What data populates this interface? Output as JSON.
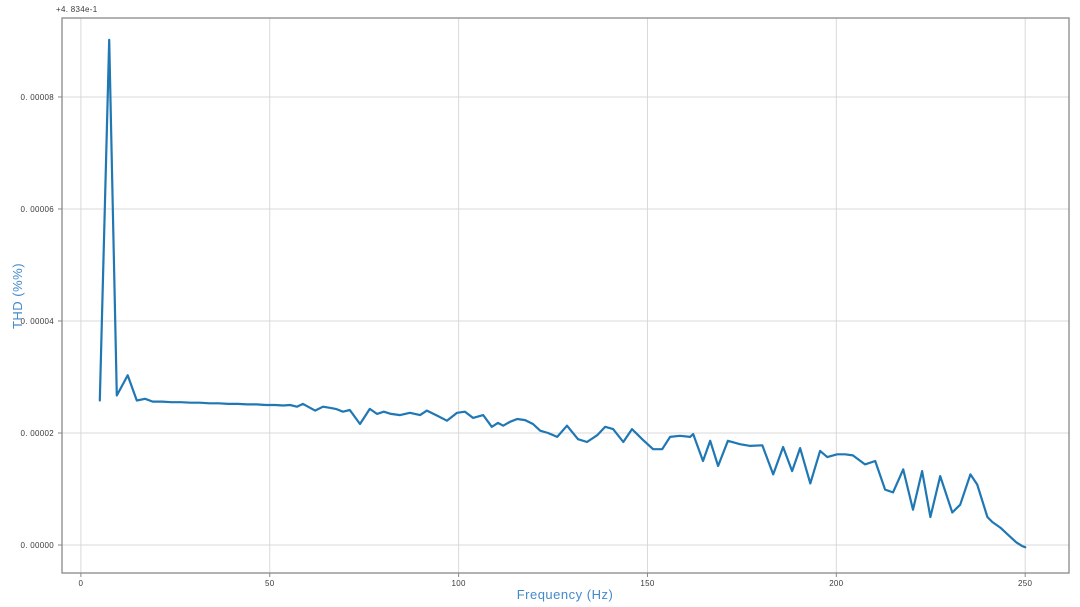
{
  "figure": {
    "offset_text": "+4. 834e-1",
    "xlabel": "Frequency (Hz)",
    "ylabel": "THD (%%)"
  },
  "colors": {
    "background": "#ffffff",
    "line": "#1f77b4",
    "axis_label": "#4489cc",
    "grid": "#d9d9d9",
    "spine": "#898989",
    "tick_text": "#3a3a3a"
  },
  "chart_data": {
    "type": "line",
    "title": "",
    "xlabel": "Frequency (Hz)",
    "ylabel": "THD (%%)",
    "y_offset_text": "+4. 834e-1",
    "legend": "none",
    "grid": true,
    "x_tick_values": [
      0,
      50,
      100,
      150,
      200,
      250
    ],
    "x_tick_labels": [
      "0",
      "50",
      "100",
      "150",
      "200",
      "250"
    ],
    "y_tick_values_e5": [
      0,
      2,
      4,
      6,
      8
    ],
    "y_tick_labels": [
      "0. 00000",
      "0. 00002",
      "0. 00004",
      "0. 00006",
      "0. 00008"
    ],
    "xlim": [
      -5.0,
      261.6
    ],
    "ylim_e5": [
      -0.5,
      9.41
    ],
    "y_unit_note": "y values in units of 1e-5 relative to axis offset +4.834e-1 (%)",
    "points": [
      [
        5,
        2.58
      ],
      [
        7.5,
        9.02
      ],
      [
        9.5,
        2.67
      ],
      [
        12.4,
        3.03
      ],
      [
        14.8,
        2.58
      ],
      [
        17,
        2.61
      ],
      [
        19,
        2.56
      ],
      [
        21.5,
        2.56
      ],
      [
        24,
        2.55
      ],
      [
        26.5,
        2.55
      ],
      [
        29,
        2.54
      ],
      [
        31.5,
        2.54
      ],
      [
        34,
        2.53
      ],
      [
        36.5,
        2.53
      ],
      [
        39,
        2.52
      ],
      [
        41.5,
        2.52
      ],
      [
        44,
        2.51
      ],
      [
        46.5,
        2.51
      ],
      [
        49,
        2.5
      ],
      [
        51.5,
        2.5
      ],
      [
        53.5,
        2.49
      ],
      [
        55.4,
        2.5
      ],
      [
        57.2,
        2.47
      ],
      [
        58.8,
        2.52
      ],
      [
        62,
        2.4
      ],
      [
        64.1,
        2.47
      ],
      [
        65.9,
        2.45
      ],
      [
        67.5,
        2.43
      ],
      [
        69.4,
        2.38
      ],
      [
        71.2,
        2.41
      ],
      [
        73.9,
        2.16
      ],
      [
        76.5,
        2.43
      ],
      [
        78.4,
        2.34
      ],
      [
        80.2,
        2.38
      ],
      [
        82.1,
        2.34
      ],
      [
        84.5,
        2.32
      ],
      [
        87.1,
        2.36
      ],
      [
        89.8,
        2.32
      ],
      [
        91.6,
        2.4
      ],
      [
        94.3,
        2.31
      ],
      [
        96.9,
        2.22
      ],
      [
        99.6,
        2.36
      ],
      [
        101.7,
        2.38
      ],
      [
        103.8,
        2.27
      ],
      [
        106.5,
        2.32
      ],
      [
        108.8,
        2.11
      ],
      [
        110.4,
        2.18
      ],
      [
        111.8,
        2.13
      ],
      [
        113.6,
        2.2
      ],
      [
        115.5,
        2.25
      ],
      [
        117.6,
        2.23
      ],
      [
        119.7,
        2.16
      ],
      [
        121.6,
        2.04
      ],
      [
        123.7,
        2.0
      ],
      [
        126.1,
        1.93
      ],
      [
        128.7,
        2.13
      ],
      [
        131.6,
        1.89
      ],
      [
        134,
        1.84
      ],
      [
        136.7,
        1.96
      ],
      [
        138.8,
        2.11
      ],
      [
        140.9,
        2.07
      ],
      [
        143.6,
        1.84
      ],
      [
        145.9,
        2.07
      ],
      [
        148.6,
        1.89
      ],
      [
        151.5,
        1.71
      ],
      [
        153.9,
        1.71
      ],
      [
        156,
        1.93
      ],
      [
        158.6,
        1.95
      ],
      [
        161.3,
        1.93
      ],
      [
        162.1,
        1.98
      ],
      [
        164.7,
        1.5
      ],
      [
        166.6,
        1.86
      ],
      [
        168.7,
        1.41
      ],
      [
        171.3,
        1.86
      ],
      [
        174.5,
        1.8
      ],
      [
        177.2,
        1.77
      ],
      [
        180.4,
        1.78
      ],
      [
        183.3,
        1.26
      ],
      [
        185.9,
        1.75
      ],
      [
        188.3,
        1.32
      ],
      [
        190.4,
        1.73
      ],
      [
        193.1,
        1.1
      ],
      [
        195.7,
        1.68
      ],
      [
        197.6,
        1.57
      ],
      [
        200.2,
        1.62
      ],
      [
        202.3,
        1.62
      ],
      [
        204.4,
        1.6
      ],
      [
        207.6,
        1.44
      ],
      [
        210.3,
        1.5
      ],
      [
        212.9,
        0.99
      ],
      [
        215,
        0.94
      ],
      [
        217.7,
        1.35
      ],
      [
        220.3,
        0.63
      ],
      [
        222.7,
        1.32
      ],
      [
        224.9,
        0.5
      ],
      [
        227.5,
        1.23
      ],
      [
        230.7,
        0.58
      ],
      [
        232.8,
        0.72
      ],
      [
        235.5,
        1.26
      ],
      [
        237.3,
        1.08
      ],
      [
        240,
        0.5
      ],
      [
        241.3,
        0.41
      ],
      [
        243.4,
        0.31
      ],
      [
        245.5,
        0.18
      ],
      [
        247.6,
        0.05
      ],
      [
        249.2,
        -0.02
      ],
      [
        250,
        -0.04
      ]
    ]
  }
}
